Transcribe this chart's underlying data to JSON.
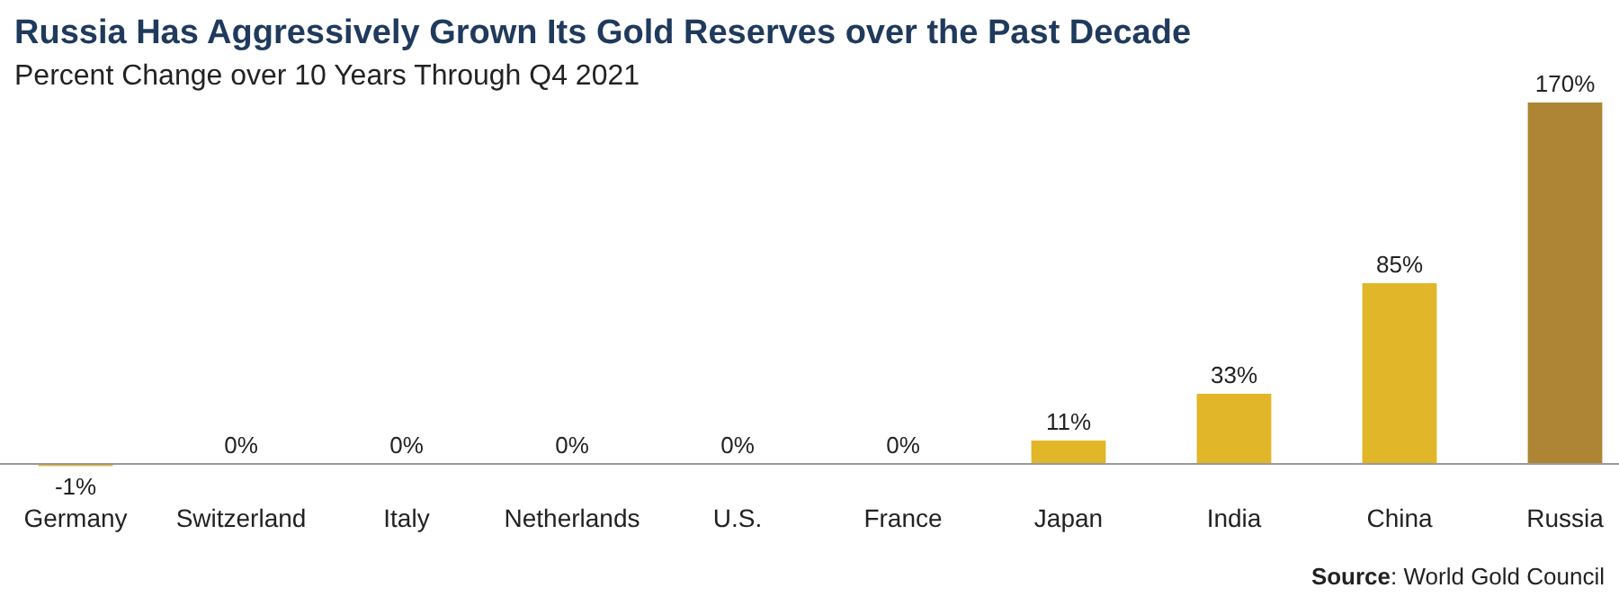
{
  "chart_data": {
    "type": "bar",
    "title": "Russia Has Aggressively Grown Its Gold Reserves over the Past Decade",
    "subtitle": "Percent Change over 10 Years Through Q4 2021",
    "categories": [
      "Germany",
      "Switzerland",
      "Italy",
      "Netherlands",
      "U.S.",
      "France",
      "Japan",
      "India",
      "China",
      "Russia"
    ],
    "values": [
      -1,
      0,
      0,
      0,
      0,
      0,
      11,
      33,
      85,
      170
    ],
    "colors": [
      "#e2b629",
      "#e2b629",
      "#e2b629",
      "#e2b629",
      "#e2b629",
      "#e2b629",
      "#e2b629",
      "#e2b629",
      "#e2b629",
      "#ad8534"
    ],
    "value_labels": [
      "-1%",
      "0%",
      "0%",
      "0%",
      "0%",
      "0%",
      "11%",
      "33%",
      "85%",
      "170%"
    ],
    "annotations": [
      "Source: World Gold Council"
    ]
  }
}
